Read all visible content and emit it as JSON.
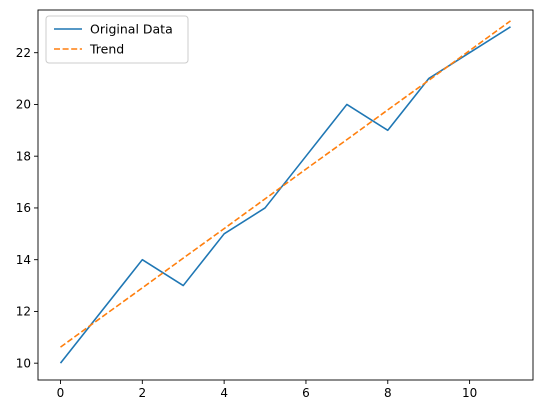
{
  "chart_data": {
    "type": "line",
    "title": "",
    "xlabel": "",
    "ylabel": "",
    "x": [
      0,
      1,
      2,
      3,
      4,
      5,
      6,
      7,
      8,
      9,
      10,
      11
    ],
    "xlim": [
      -0.55,
      11.55
    ],
    "ylim": [
      9.35,
      23.65
    ],
    "x_ticks": [
      0,
      2,
      4,
      6,
      8,
      10
    ],
    "y_ticks": [
      10,
      12,
      14,
      16,
      18,
      20,
      22
    ],
    "grid": false,
    "legend": "upper-left",
    "series": [
      {
        "name": "Original Data",
        "style": "solid",
        "color": "#1f77b4",
        "values": [
          10,
          12,
          14,
          13,
          15,
          16,
          18,
          20,
          19,
          21,
          22,
          23
        ]
      },
      {
        "name": "Trend",
        "style": "dashed",
        "color": "#ff7f0e",
        "values": [
          10.62,
          11.77,
          12.91,
          14.06,
          15.2,
          16.35,
          17.5,
          18.64,
          19.79,
          20.93,
          22.08,
          23.23
        ]
      }
    ]
  }
}
